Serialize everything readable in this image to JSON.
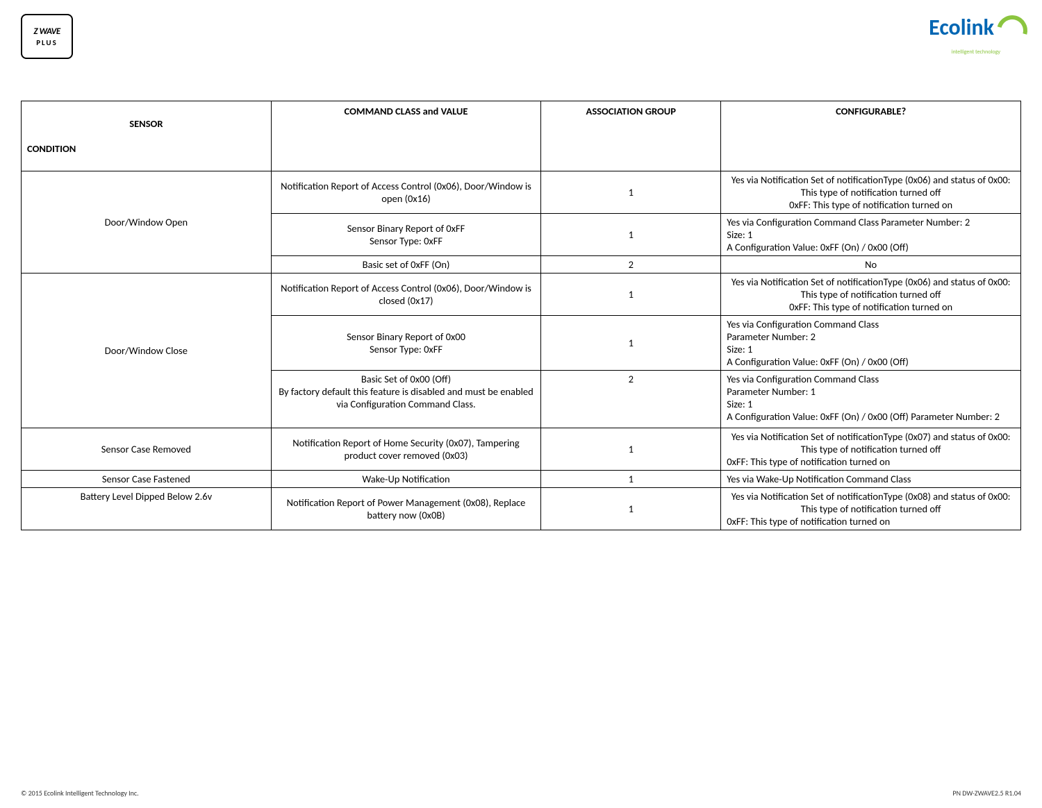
{
  "logos": {
    "left_text": "Z WAVE",
    "left_plus": "PLUS",
    "right_text": "Ecolink",
    "right_subtitle": "intelligent technology"
  },
  "table": {
    "headers": {
      "col1_line1": "SENSOR",
      "col1_line2": "CONDITION",
      "col2": "COMMAND CLASS and VALUE",
      "col3": "ASSOCIATION GROUP",
      "col4": "CONFIGURABLE?"
    },
    "rows": [
      {
        "sensor": "Door/Window Open",
        "sensor_rowspan": 3,
        "command": "Notification Report of Access Control (0x06), Door/Window is open (0x16)",
        "group": "1",
        "config": "Yes via Notification Set of notificationType (0x06)  and status of 0x00: This type of notification turned off\n0xFF: This type of notification turned on",
        "config_align": "center"
      },
      {
        "command": "Sensor Binary Report of 0xFF\nSensor Type: 0xFF",
        "group": "1",
        "config": "             Yes via Configuration Command Class  Parameter Number: 2\nSize: 1\nA Configuration Value: 0xFF (On) / 0x00 (Off)",
        "config_align": "left"
      },
      {
        "command": "Basic set of 0xFF (On)",
        "group": "2",
        "config": "No",
        "config_align": "center"
      },
      {
        "sensor": "Door/Window Close",
        "sensor_rowspan": 3,
        "command": "Notification Report of Access Control (0x06), Door/Window is closed (0x17)",
        "group": "1",
        "config": "Yes via Notification Set of notificationType (0x06)  and status of 0x00: This type of notification turned off\n0xFF: This type of notification turned on",
        "config_align": "center"
      },
      {
        "command": "Sensor Binary Report of 0x00\nSensor Type: 0xFF",
        "group": "1",
        "config": "Yes via Configuration Command Class\nParameter Number: 2\nSize: 1\nA Configuration Value: 0xFF (On) / 0x00 (Off)",
        "config_align": "left"
      },
      {
        "command": "Basic Set of 0x00 (Off)\nBy factory default this feature is disabled and must be enabled via Configuration Command Class.",
        "group": "2",
        "group_valign": "top",
        "config": "Yes via Configuration Command Class\nParameter Number: 1\nSize: 1\nA Configuration Value: 0xFF (On) / 0x00 (Off)  Parameter Number: 2",
        "config_align": "left",
        "extra_space": true
      },
      {
        "sensor": "Sensor Case Removed",
        "sensor_rowspan": 1,
        "command": "Notification Report of Home Security (0x07), Tampering product cover removed (0x03)",
        "group": "1",
        "config": "Yes via Notification Set of notificationType (0x07)  and status of 0x00: This type of notification turned off\n0xFF: This type of notification turned on",
        "config_align": "center-left"
      },
      {
        "sensor": "Sensor Case Fastened",
        "sensor_rowspan": 1,
        "sensor_valign": "top",
        "command": "Wake-Up Notification",
        "command_valign": "top",
        "group": "1",
        "group_valign": "top",
        "config": "Yes via Wake-Up Notification Command Class",
        "config_align": "left"
      },
      {
        "sensor": "Battery Level Dipped Below 2.6v",
        "sensor_rowspan": 1,
        "sensor_valign": "top",
        "command": "Notification Report of Power Management (0x08), Replace battery now (0x0B)",
        "group": "1",
        "config": "Yes via Notification Set of notificationType (0x08)  and status of 0x00: This type of notification turned off\n0xFF: This type of notification turned on",
        "config_align": "center-left"
      }
    ]
  },
  "footer": {
    "left": "© 2015 Ecolink Intelligent Technology Inc.",
    "right": "PN DW-ZWAVE2.5  R1.04"
  },
  "colors": {
    "ecolink_blue": "#0066b3",
    "ecolink_green": "#8bc53f",
    "border": "#000000",
    "bg": "#ffffff"
  }
}
